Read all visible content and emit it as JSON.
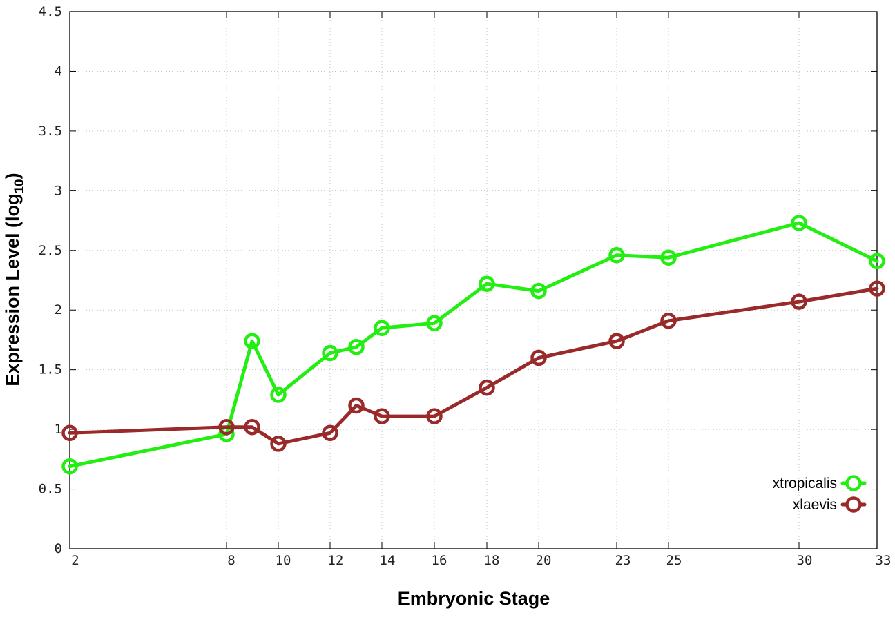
{
  "chart_data": {
    "type": "line",
    "title": "",
    "xlabel": "Embryonic Stage",
    "ylabel_main": "Expression Level (log",
    "ylabel_sub": "10",
    "ylabel_close": ")",
    "x_ticks": [
      "2",
      "8",
      "10",
      "12",
      "14",
      "16",
      "18",
      "20",
      "23",
      "25",
      "30",
      "33"
    ],
    "y_ticks": [
      "0",
      "0.5",
      "1",
      "1.5",
      "2",
      "2.5",
      "3",
      "3.5",
      "4",
      "4.5"
    ],
    "ylim": [
      0,
      4.5
    ],
    "x_axis": "ordinal stage scale (tick labels at stages 2, 8, 10, 12, 14, 16, 18, 20, 23, 25, 30, 33)",
    "grid": true,
    "legend_position": "bottom-right",
    "series": [
      {
        "name": "xtropicalis",
        "color": "#22ee11",
        "x": [
          2,
          8,
          9,
          10,
          12,
          13,
          14,
          16,
          18,
          20,
          23,
          25,
          30,
          33
        ],
        "values": [
          0.69,
          0.96,
          1.74,
          1.29,
          1.64,
          1.69,
          1.85,
          1.89,
          2.22,
          2.16,
          2.46,
          2.44,
          2.73,
          2.41
        ]
      },
      {
        "name": "xlaevis",
        "color": "#9a2a2a",
        "x": [
          2,
          8,
          9,
          10,
          12,
          13,
          14,
          16,
          18,
          20,
          23,
          25,
          30,
          33
        ],
        "values": [
          0.97,
          1.02,
          1.02,
          0.88,
          0.97,
          1.2,
          1.11,
          1.11,
          1.35,
          1.6,
          1.74,
          1.91,
          2.07,
          2.18
        ]
      }
    ]
  }
}
